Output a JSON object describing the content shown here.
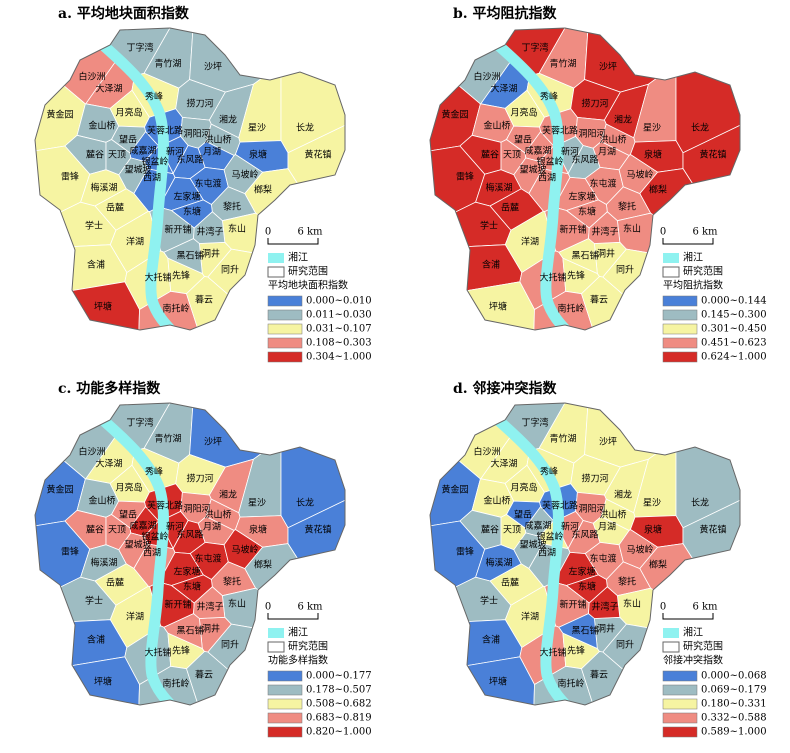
{
  "scale_bar": {
    "zero": "0",
    "length": "6 km"
  },
  "river_label": "湘江",
  "river_color": "#8ff2f0",
  "boundary_label": "研究范围",
  "districts": [
    "丁字湾",
    "青竹湖",
    "沙坪",
    "白沙洲",
    "大泽湖",
    "秀峰",
    "捞刀河",
    "湘龙",
    "星沙",
    "长龙",
    "黄金园",
    "金山桥",
    "月亮岛",
    "芙蓉北路",
    "洞阳河",
    "望岳",
    "洪山桥",
    "麓谷",
    "天顶",
    "咸嘉湖",
    "银盆岭",
    "新河",
    "东风路",
    "月湖",
    "泉塘",
    "黄花镇",
    "雷锋",
    "望城坡",
    "西湖",
    "东屯渡",
    "马坡岭",
    "梅溪湖",
    "榔梨",
    "岳麓",
    "左家塘",
    "黎托",
    "东塘",
    "学士",
    "洋湖",
    "新开铺",
    "东山",
    "含浦",
    "大托铺",
    "先锋",
    "同升",
    "洞井",
    "黑石铺",
    "坪塘",
    "南托岭",
    "暮云",
    "井湾子"
  ],
  "panels": [
    {
      "title": "a. 平均地块面积指数",
      "legend_title": "平均地块面积指数",
      "classes": [
        {
          "label": "0.000~0.010",
          "color": "#4a80d8"
        },
        {
          "label": "0.011~0.030",
          "color": "#9ebcc2"
        },
        {
          "label": "0.031~0.107",
          "color": "#f6f4a2"
        },
        {
          "label": "0.108~0.303",
          "color": "#ef8c82"
        },
        {
          "label": "0.304~1.000",
          "color": "#d52b27"
        }
      ],
      "district_colors": [
        "#9ebcc2",
        "#9ebcc2",
        "#9ebcc2",
        "#ef8c82",
        "#ef8c82",
        "#f6f4a2",
        "#9ebcc2",
        "#9ebcc2",
        "#f6f4a2",
        "#f6f4a2",
        "#f6f4a2",
        "#9ebcc2",
        "#f6f4a2",
        "#4a80d8",
        "#9ebcc2",
        "#9ebcc2",
        "#9ebcc2",
        "#9ebcc2",
        "#9ebcc2",
        "#4a80d8",
        "#4a80d8",
        "#4a80d8",
        "#4a80d8",
        "#4a80d8",
        "#4a80d8",
        "#f6f4a2",
        "#f6f4a2",
        "#9ebcc2",
        "#4a80d8",
        "#4a80d8",
        "#9ebcc2",
        "#f6f4a2",
        "#f6f4a2",
        "#f6f4a2",
        "#4a80d8",
        "#9ebcc2",
        "#4a80d8",
        "#f6f4a2",
        "#f6f4a2",
        "#9ebcc2",
        "#f6f4a2",
        "#f6f4a2",
        "#f6f4a2",
        "#f6f4a2",
        "#f6f4a2",
        "#f6f4a2",
        "#9ebcc2",
        "#d52b27",
        "#ef8c82",
        "#f6f4a2",
        "#9ebcc2"
      ]
    },
    {
      "title": "b. 平均阻抗指数",
      "legend_title": "平均阻抗指数",
      "classes": [
        {
          "label": "0.000~0.144",
          "color": "#4a80d8"
        },
        {
          "label": "0.145~0.300",
          "color": "#9ebcc2"
        },
        {
          "label": "0.301~0.450",
          "color": "#f6f4a2"
        },
        {
          "label": "0.451~0.623",
          "color": "#ef8c82"
        },
        {
          "label": "0.624~1.000",
          "color": "#d52b27"
        }
      ],
      "district_colors": [
        "#d52b27",
        "#ef8c82",
        "#d52b27",
        "#9ebcc2",
        "#4a80d8",
        "#f6f4a2",
        "#d52b27",
        "#d52b27",
        "#ef8c82",
        "#d52b27",
        "#d52b27",
        "#ef8c82",
        "#f6f4a2",
        "#ef8c82",
        "#ef8c82",
        "#ef8c82",
        "#ef8c82",
        "#d52b27",
        "#ef8c82",
        "#ef8c82",
        "#ef8c82",
        "#9ebcc2",
        "#9ebcc2",
        "#ef8c82",
        "#d52b27",
        "#d52b27",
        "#d52b27",
        "#ef8c82",
        "#ef8c82",
        "#ef8c82",
        "#ef8c82",
        "#d52b27",
        "#d52b27",
        "#d52b27",
        "#ef8c82",
        "#ef8c82",
        "#ef8c82",
        "#d52b27",
        "#f6f4a2",
        "#ef8c82",
        "#ef8c82",
        "#d52b27",
        "#ef8c82",
        "#f6f4a2",
        "#f6f4a2",
        "#f6f4a2",
        "#f6f4a2",
        "#f6f4a2",
        "#ef8c82",
        "#f6f4a2",
        "#ef8c82"
      ]
    },
    {
      "title": "c. 功能多样指数",
      "legend_title": "功能多样指数",
      "classes": [
        {
          "label": "0.000~0.177",
          "color": "#4a80d8"
        },
        {
          "label": "0.178~0.507",
          "color": "#9ebcc2"
        },
        {
          "label": "0.508~0.682",
          "color": "#f6f4a2"
        },
        {
          "label": "0.683~0.819",
          "color": "#ef8c82"
        },
        {
          "label": "0.820~1.000",
          "color": "#d52b27"
        }
      ],
      "district_colors": [
        "#9ebcc2",
        "#9ebcc2",
        "#4a80d8",
        "#9ebcc2",
        "#f6f4a2",
        "#f6f4a2",
        "#f6f4a2",
        "#ef8c82",
        "#9ebcc2",
        "#4a80d8",
        "#4a80d8",
        "#9ebcc2",
        "#f6f4a2",
        "#d52b27",
        "#ef8c82",
        "#ef8c82",
        "#ef8c82",
        "#ef8c82",
        "#ef8c82",
        "#d52b27",
        "#d52b27",
        "#d52b27",
        "#d52b27",
        "#ef8c82",
        "#ef8c82",
        "#4a80d8",
        "#4a80d8",
        "#ef8c82",
        "#ef8c82",
        "#d52b27",
        "#d52b27",
        "#9ebcc2",
        "#9ebcc2",
        "#f6f4a2",
        "#d52b27",
        "#ef8c82",
        "#d52b27",
        "#9ebcc2",
        "#f6f4a2",
        "#d52b27",
        "#9ebcc2",
        "#4a80d8",
        "#9ebcc2",
        "#f6f4a2",
        "#9ebcc2",
        "#ef8c82",
        "#ef8c82",
        "#4a80d8",
        "#9ebcc2",
        "#9ebcc2",
        "#ef8c82"
      ]
    },
    {
      "title": "d. 邻接冲突指数",
      "legend_title": "邻接冲突指数",
      "classes": [
        {
          "label": "0.000~0.068",
          "color": "#4a80d8"
        },
        {
          "label": "0.069~0.179",
          "color": "#9ebcc2"
        },
        {
          "label": "0.180~0.331",
          "color": "#f6f4a2"
        },
        {
          "label": "0.332~0.588",
          "color": "#ef8c82"
        },
        {
          "label": "0.589~1.000",
          "color": "#d52b27"
        }
      ],
      "district_colors": [
        "#9ebcc2",
        "#f6f4a2",
        "#f6f4a2",
        "#f6f4a2",
        "#f6f4a2",
        "#f6f4a2",
        "#f6f4a2",
        "#f6f4a2",
        "#f6f4a2",
        "#9ebcc2",
        "#4a80d8",
        "#f6f4a2",
        "#f6f4a2",
        "#4a80d8",
        "#ef8c82",
        "#4a80d8",
        "#f6f4a2",
        "#9ebcc2",
        "#f6f4a2",
        "#9ebcc2",
        "#f6f4a2",
        "#ef8c82",
        "#ef8c82",
        "#f6f4a2",
        "#d52b27",
        "#9ebcc2",
        "#4a80d8",
        "#9ebcc2",
        "#9ebcc2",
        "#ef8c82",
        "#ef8c82",
        "#4a80d8",
        "#ef8c82",
        "#f6f4a2",
        "#d52b27",
        "#ef8c82",
        "#d52b27",
        "#9ebcc2",
        "#f6f4a2",
        "#ef8c82",
        "#f6f4a2",
        "#4a80d8",
        "#ef8c82",
        "#f6f4a2",
        "#9ebcc2",
        "#9ebcc2",
        "#4a80d8",
        "#4a80d8",
        "#9ebcc2",
        "#9ebcc2",
        "#d52b27"
      ]
    }
  ]
}
